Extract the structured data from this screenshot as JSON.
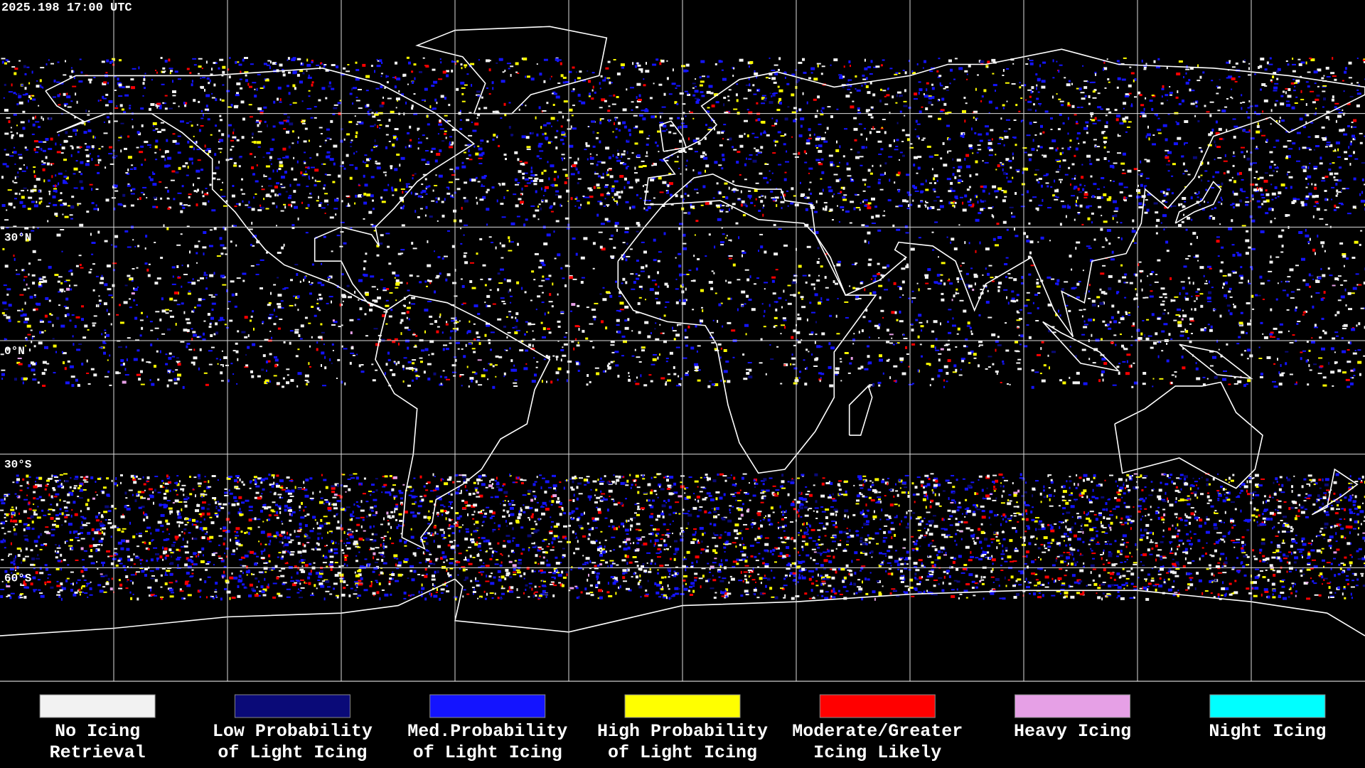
{
  "map": {
    "timestamp": "2025.198 17:00 UTC",
    "lat_labels": [
      "30°N",
      "0°N",
      "30°S",
      "60°S"
    ],
    "legend": [
      {
        "lines": [
          "No Icing",
          "Retrieval"
        ],
        "color": "#f2f2f2"
      },
      {
        "lines": [
          "Low Probability",
          "of Light Icing"
        ],
        "color": "#0a0a78"
      },
      {
        "lines": [
          "Med.Probability",
          "of Light Icing"
        ],
        "color": "#1414ff"
      },
      {
        "lines": [
          "High Probability",
          "of Light Icing"
        ],
        "color": "#ffff00"
      },
      {
        "lines": [
          "Moderate/Greater",
          "Icing Likely"
        ],
        "color": "#ff0000"
      },
      {
        "lines": [
          "Heavy Icing"
        ],
        "color": "#e6a0e6"
      },
      {
        "lines": [
          "Night Icing"
        ],
        "color": "#00ffff"
      }
    ]
  }
}
